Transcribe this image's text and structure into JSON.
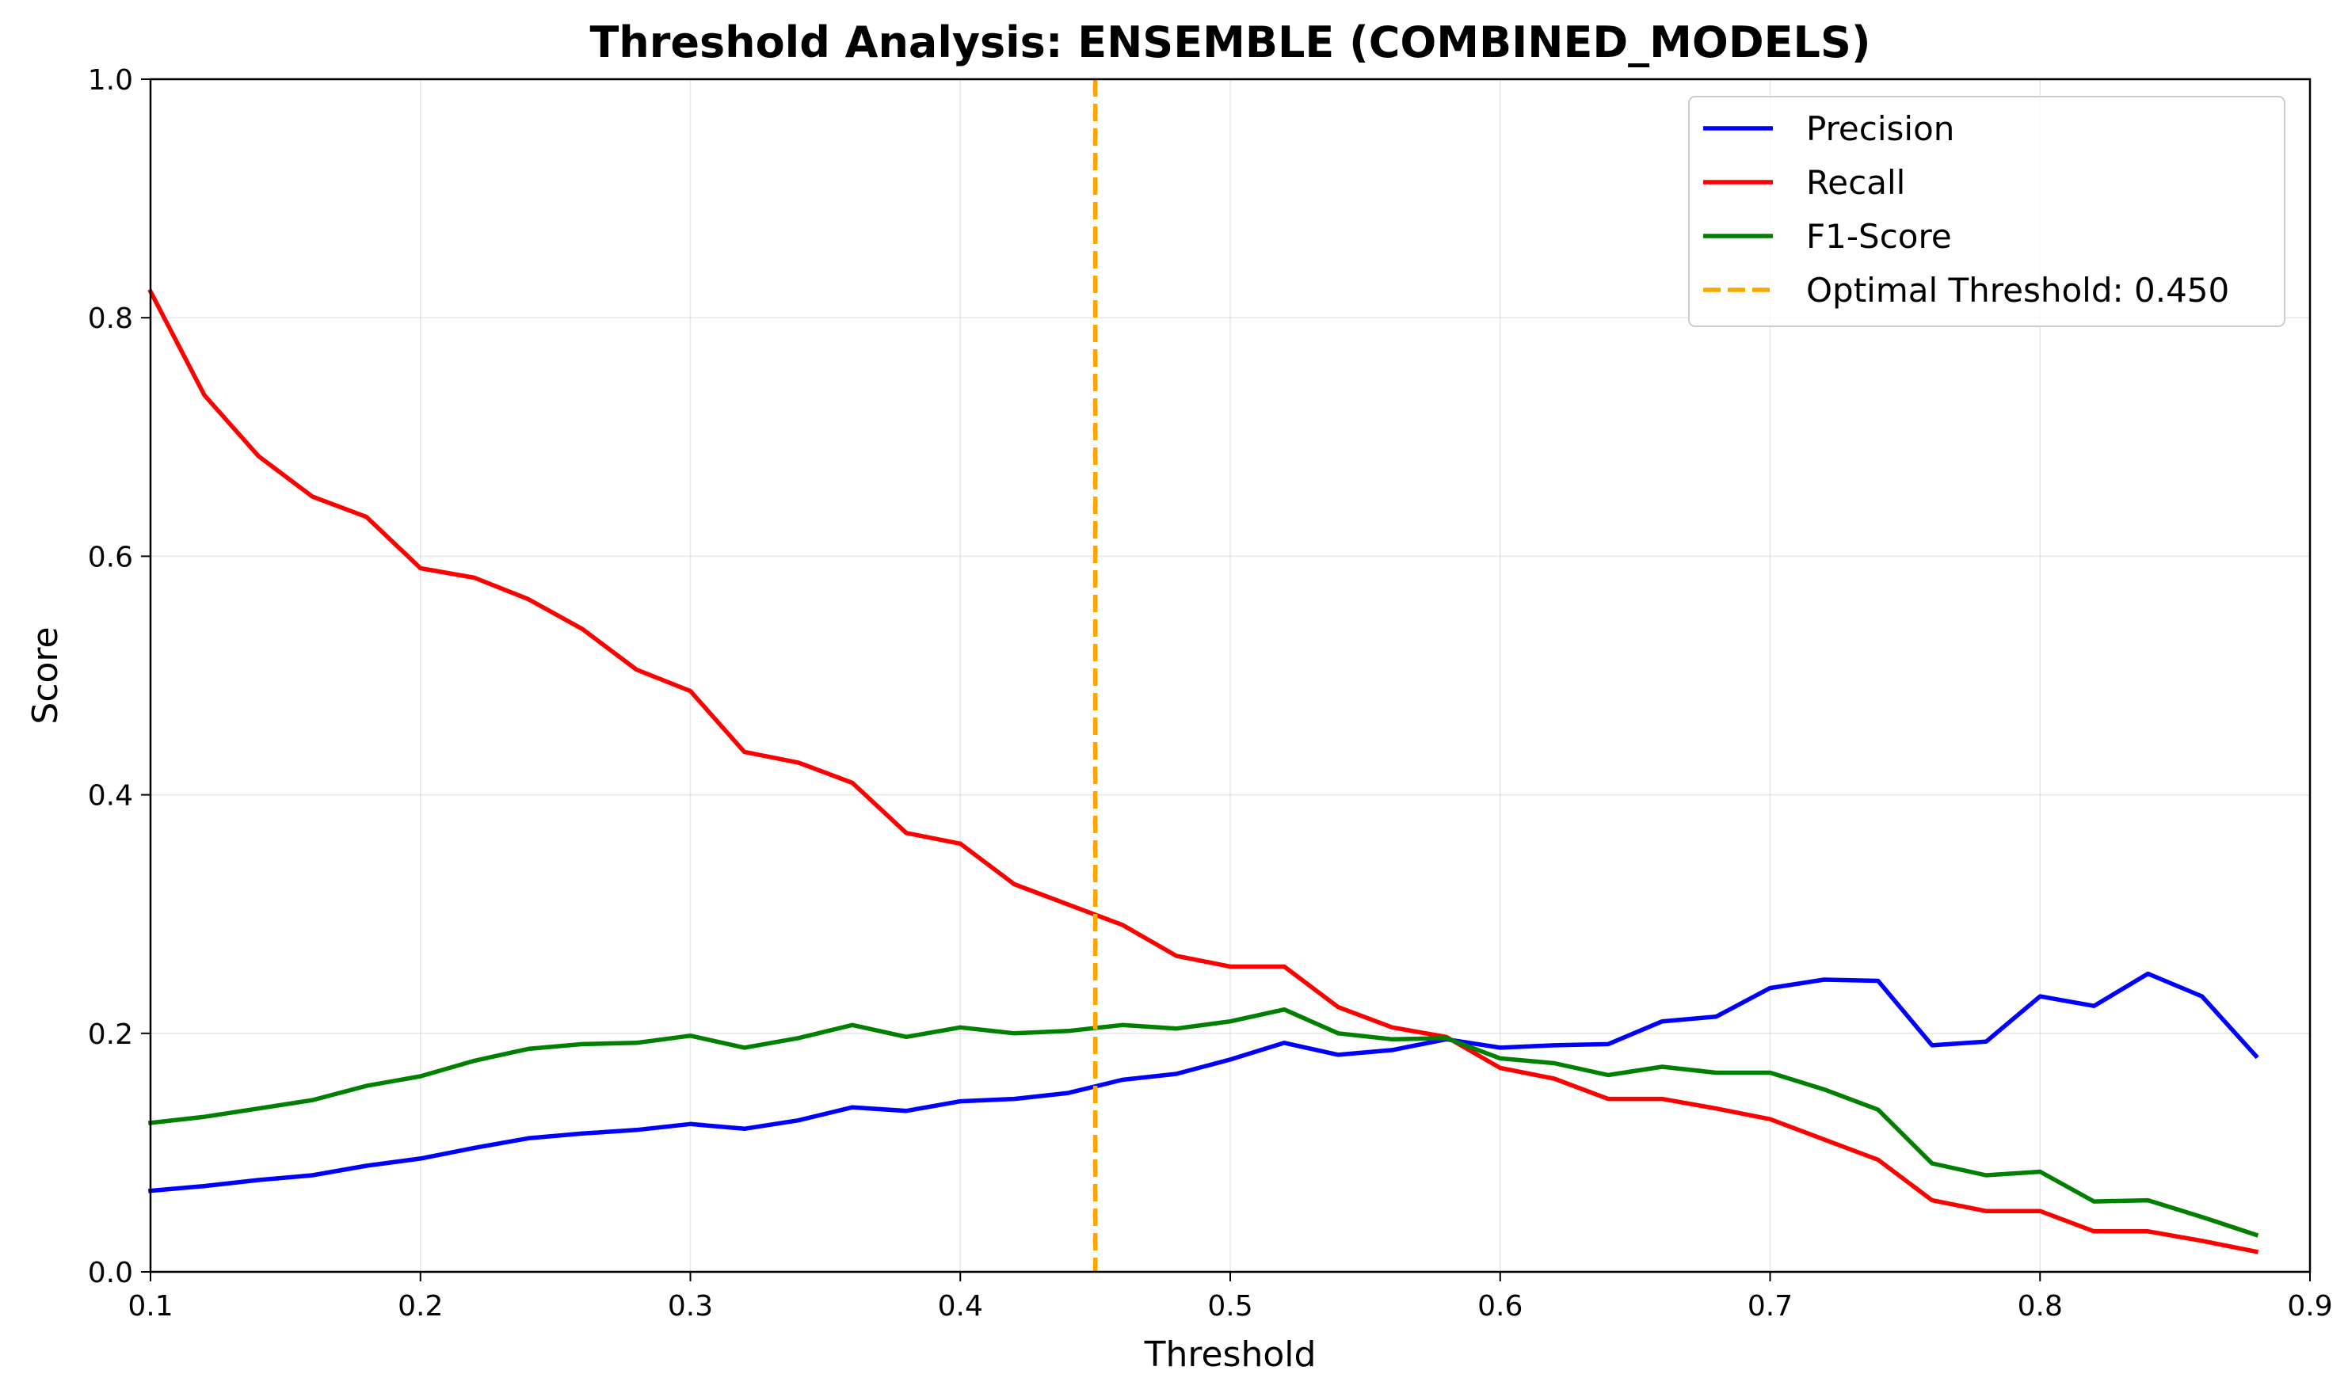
{
  "chart_data": {
    "type": "line",
    "title": "Threshold Analysis: ENSEMBLE (COMBINED_MODELS)",
    "xlabel": "Threshold",
    "ylabel": "Score",
    "xlim": [
      0.1,
      0.9
    ],
    "ylim": [
      0.0,
      1.0
    ],
    "xticks": [
      "0.1",
      "0.2",
      "0.3",
      "0.4",
      "0.5",
      "0.6",
      "0.7",
      "0.8",
      "0.9"
    ],
    "yticks": [
      "0.0",
      "0.2",
      "0.4",
      "0.6",
      "0.8",
      "1.0"
    ],
    "grid": true,
    "legend_position": "top-right",
    "x": [
      0.1,
      0.12,
      0.14,
      0.16,
      0.18,
      0.2,
      0.22,
      0.24,
      0.26,
      0.28,
      0.3,
      0.32,
      0.34,
      0.36,
      0.38,
      0.4,
      0.42,
      0.44,
      0.46,
      0.48,
      0.5,
      0.52,
      0.54,
      0.56,
      0.58,
      0.6,
      0.62,
      0.64,
      0.66,
      0.68,
      0.7,
      0.72,
      0.74,
      0.76,
      0.78,
      0.8,
      0.82,
      0.84,
      0.86,
      0.88
    ],
    "series": [
      {
        "name": "Precision",
        "color": "#0000ff",
        "values": [
          0.068,
          0.072,
          0.077,
          0.081,
          0.089,
          0.095,
          0.104,
          0.112,
          0.116,
          0.119,
          0.124,
          0.12,
          0.127,
          0.138,
          0.135,
          0.143,
          0.145,
          0.15,
          0.161,
          0.166,
          0.178,
          0.192,
          0.182,
          0.186,
          0.195,
          0.188,
          0.19,
          0.191,
          0.21,
          0.214,
          0.238,
          0.245,
          0.244,
          0.19,
          0.193,
          0.231,
          0.223,
          0.25,
          0.231,
          0.181
        ]
      },
      {
        "name": "Recall",
        "color": "#ff0000",
        "values": [
          0.822,
          0.735,
          0.684,
          0.65,
          0.633,
          0.59,
          0.582,
          0.564,
          0.539,
          0.505,
          0.487,
          0.436,
          0.427,
          0.41,
          0.368,
          0.359,
          0.325,
          0.308,
          0.291,
          0.265,
          0.256,
          0.256,
          0.222,
          0.205,
          0.197,
          0.171,
          0.162,
          0.145,
          0.145,
          0.137,
          0.128,
          0.111,
          0.094,
          0.06,
          0.051,
          0.051,
          0.034,
          0.034,
          0.026,
          0.017
        ]
      },
      {
        "name": "F1-Score",
        "color": "#008000",
        "values": [
          0.125,
          0.13,
          0.137,
          0.144,
          0.156,
          0.164,
          0.177,
          0.187,
          0.191,
          0.192,
          0.198,
          0.188,
          0.196,
          0.207,
          0.197,
          0.205,
          0.2,
          0.202,
          0.207,
          0.204,
          0.21,
          0.22,
          0.2,
          0.195,
          0.196,
          0.179,
          0.175,
          0.165,
          0.172,
          0.167,
          0.167,
          0.153,
          0.136,
          0.091,
          0.081,
          0.084,
          0.059,
          0.06,
          0.046,
          0.031
        ]
      }
    ],
    "vline": {
      "name": "Optimal Threshold: 0.450",
      "x": 0.45,
      "color": "#ffa500",
      "style": "dashed"
    }
  }
}
